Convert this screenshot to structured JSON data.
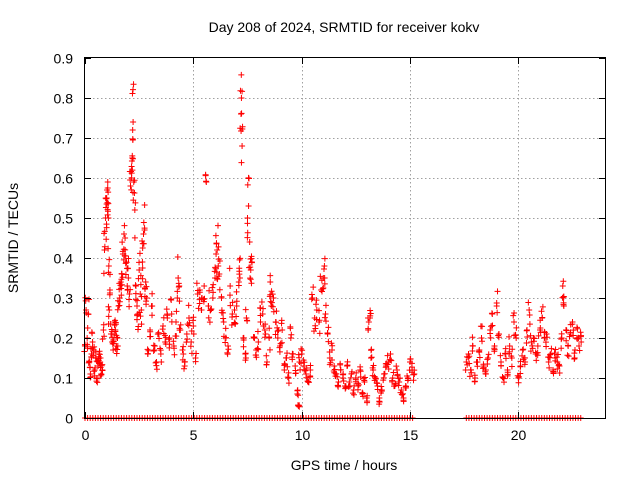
{
  "chart_data": {
    "type": "scatter",
    "title": "Day 208 of 2024, SRMTID for receiver kokv",
    "xlabel": "GPS time / hours",
    "ylabel": "SRMTID / TECUs",
    "xlim": [
      0,
      24
    ],
    "ylim": [
      0,
      0.9
    ],
    "xticks": [
      0,
      5,
      10,
      15,
      20
    ],
    "xtick_labels": [
      "0",
      "5",
      "10",
      "15",
      "20"
    ],
    "yticks": [
      0,
      0.1,
      0.2,
      0.3,
      0.4,
      0.5,
      0.6,
      0.7,
      0.8,
      0.9
    ],
    "ytick_labels": [
      "0",
      "0.1",
      "0.2",
      "0.3",
      "0.4",
      "0.5",
      "0.6",
      "0.7",
      "0.8",
      "0.9"
    ],
    "grid": true,
    "marker": "+",
    "color": "#ff0000",
    "series": [
      {
        "name": "SRMTID",
        "points": [
          [
            0.0,
            0.18
          ],
          [
            0.05,
            0.27
          ],
          [
            0.1,
            0.2
          ],
          [
            0.15,
            0.26
          ],
          [
            0.2,
            0.14
          ],
          [
            0.25,
            0.11
          ],
          [
            0.3,
            0.16
          ],
          [
            0.35,
            0.19
          ],
          [
            0.4,
            0.17
          ],
          [
            0.45,
            0.12
          ],
          [
            0.5,
            0.15
          ],
          [
            0.55,
            0.1
          ],
          [
            0.6,
            0.13
          ],
          [
            0.65,
            0.16
          ],
          [
            0.7,
            0.14
          ],
          [
            0.75,
            0.11
          ],
          [
            0.8,
            0.12
          ],
          [
            0.85,
            0.22
          ],
          [
            0.9,
            0.42
          ],
          [
            0.95,
            0.5
          ],
          [
            1.0,
            0.55
          ],
          [
            1.02,
            0.57
          ],
          [
            1.05,
            0.59
          ],
          [
            1.08,
            0.5
          ],
          [
            1.1,
            0.38
          ],
          [
            1.12,
            0.27
          ],
          [
            1.15,
            0.32
          ],
          [
            1.2,
            0.21
          ],
          [
            1.25,
            0.19
          ],
          [
            1.3,
            0.17
          ],
          [
            1.35,
            0.24
          ],
          [
            1.4,
            0.22
          ],
          [
            1.45,
            0.18
          ],
          [
            1.5,
            0.2
          ],
          [
            1.55,
            0.28
          ],
          [
            1.6,
            0.3
          ],
          [
            1.65,
            0.34
          ],
          [
            1.7,
            0.36
          ],
          [
            1.75,
            0.41
          ],
          [
            1.8,
            0.46
          ],
          [
            1.85,
            0.45
          ],
          [
            1.9,
            0.39
          ],
          [
            1.95,
            0.33
          ],
          [
            2.0,
            0.35
          ],
          [
            2.05,
            0.31
          ],
          [
            2.1,
            0.58
          ],
          [
            2.15,
            0.6
          ],
          [
            2.18,
            0.65
          ],
          [
            2.2,
            0.72
          ],
          [
            2.22,
            0.74
          ],
          [
            2.25,
            0.59
          ],
          [
            2.3,
            0.52
          ],
          [
            2.35,
            0.33
          ],
          [
            2.4,
            0.28
          ],
          [
            2.45,
            0.26
          ],
          [
            2.5,
            0.37
          ],
          [
            2.55,
            0.31
          ],
          [
            2.6,
            0.27
          ],
          [
            2.65,
            0.39
          ],
          [
            2.7,
            0.46
          ],
          [
            2.75,
            0.47
          ],
          [
            2.8,
            0.34
          ],
          [
            2.85,
            0.3
          ],
          [
            2.9,
            0.16
          ],
          [
            3.0,
            0.22
          ],
          [
            3.1,
            0.28
          ],
          [
            3.2,
            0.17
          ],
          [
            3.3,
            0.14
          ],
          [
            3.4,
            0.21
          ],
          [
            3.5,
            0.16
          ],
          [
            3.6,
            0.23
          ],
          [
            3.7,
            0.19
          ],
          [
            3.8,
            0.25
          ],
          [
            3.9,
            0.2
          ],
          [
            4.0,
            0.26
          ],
          [
            4.1,
            0.18
          ],
          [
            4.2,
            0.24
          ],
          [
            4.3,
            0.35
          ],
          [
            4.35,
            0.33
          ],
          [
            4.4,
            0.22
          ],
          [
            4.5,
            0.17
          ],
          [
            4.6,
            0.13
          ],
          [
            4.7,
            0.21
          ],
          [
            4.8,
            0.25
          ],
          [
            4.9,
            0.19
          ],
          [
            5.0,
            0.23
          ],
          [
            5.1,
            0.15
          ],
          [
            5.2,
            0.31
          ],
          [
            5.3,
            0.32
          ],
          [
            5.4,
            0.3
          ],
          [
            5.5,
            0.33
          ],
          [
            5.6,
            0.59
          ],
          [
            5.7,
            0.28
          ],
          [
            5.8,
            0.27
          ],
          [
            5.9,
            0.3
          ],
          [
            6.0,
            0.35
          ],
          [
            6.05,
            0.41
          ],
          [
            6.1,
            0.42
          ],
          [
            6.15,
            0.38
          ],
          [
            6.2,
            0.36
          ],
          [
            6.3,
            0.3
          ],
          [
            6.4,
            0.24
          ],
          [
            6.5,
            0.2
          ],
          [
            6.6,
            0.18
          ],
          [
            6.7,
            0.33
          ],
          [
            6.8,
            0.26
          ],
          [
            6.9,
            0.27
          ],
          [
            7.0,
            0.28
          ],
          [
            7.1,
            0.34
          ],
          [
            7.15,
            0.35
          ],
          [
            7.2,
            0.76
          ],
          [
            7.22,
            0.8
          ],
          [
            7.25,
            0.68
          ],
          [
            7.3,
            0.2
          ],
          [
            7.4,
            0.16
          ],
          [
            7.45,
            0.25
          ],
          [
            7.5,
            0.5
          ],
          [
            7.55,
            0.53
          ],
          [
            7.6,
            0.44
          ],
          [
            7.65,
            0.37
          ],
          [
            7.7,
            0.39
          ],
          [
            7.8,
            0.2
          ],
          [
            7.9,
            0.17
          ],
          [
            8.0,
            0.19
          ],
          [
            8.1,
            0.24
          ],
          [
            8.2,
            0.26
          ],
          [
            8.3,
            0.22
          ],
          [
            8.4,
            0.14
          ],
          [
            8.5,
            0.2
          ],
          [
            8.55,
            0.34
          ],
          [
            8.6,
            0.28
          ],
          [
            8.7,
            0.3
          ],
          [
            8.8,
            0.24
          ],
          [
            8.9,
            0.2
          ],
          [
            9.0,
            0.18
          ],
          [
            9.1,
            0.22
          ],
          [
            9.2,
            0.12
          ],
          [
            9.3,
            0.15
          ],
          [
            9.4,
            0.1
          ],
          [
            9.5,
            0.2
          ],
          [
            9.6,
            0.16
          ],
          [
            9.7,
            0.13
          ],
          [
            9.8,
            0.06
          ],
          [
            9.85,
            0.03
          ],
          [
            9.9,
            0.14
          ],
          [
            10.0,
            0.16
          ],
          [
            10.1,
            0.13
          ],
          [
            10.2,
            0.11
          ],
          [
            10.3,
            0.09
          ],
          [
            10.4,
            0.12
          ],
          [
            10.5,
            0.3
          ],
          [
            10.6,
            0.25
          ],
          [
            10.7,
            0.27
          ],
          [
            10.8,
            0.24
          ],
          [
            10.9,
            0.32
          ],
          [
            11.0,
            0.35
          ],
          [
            11.05,
            0.38
          ],
          [
            11.1,
            0.26
          ],
          [
            11.2,
            0.21
          ],
          [
            11.3,
            0.15
          ],
          [
            11.4,
            0.17
          ],
          [
            11.5,
            0.13
          ],
          [
            11.6,
            0.11
          ],
          [
            11.7,
            0.09
          ],
          [
            11.8,
            0.12
          ],
          [
            11.9,
            0.1
          ],
          [
            12.0,
            0.08
          ],
          [
            12.1,
            0.13
          ],
          [
            12.2,
            0.09
          ],
          [
            12.3,
            0.11
          ],
          [
            12.4,
            0.07
          ],
          [
            12.5,
            0.1
          ],
          [
            12.6,
            0.08
          ],
          [
            12.7,
            0.12
          ],
          [
            12.8,
            0.06
          ],
          [
            12.9,
            0.09
          ],
          [
            13.0,
            0.05
          ],
          [
            13.1,
            0.24
          ],
          [
            13.15,
            0.25
          ],
          [
            13.2,
            0.15
          ],
          [
            13.3,
            0.12
          ],
          [
            13.4,
            0.1
          ],
          [
            13.5,
            0.08
          ],
          [
            13.6,
            0.04
          ],
          [
            13.7,
            0.07
          ],
          [
            13.8,
            0.11
          ],
          [
            13.9,
            0.13
          ],
          [
            14.0,
            0.14
          ],
          [
            14.1,
            0.16
          ],
          [
            14.2,
            0.1
          ],
          [
            14.3,
            0.08
          ],
          [
            14.4,
            0.12
          ],
          [
            14.5,
            0.09
          ],
          [
            14.6,
            0.07
          ],
          [
            14.7,
            0.05
          ],
          [
            14.8,
            0.08
          ],
          [
            14.9,
            0.1
          ],
          [
            15.0,
            0.14
          ],
          [
            15.1,
            0.12
          ],
          [
            15.2,
            0.11
          ],
          [
            17.6,
            0.14
          ],
          [
            17.7,
            0.16
          ],
          [
            17.8,
            0.12
          ],
          [
            17.9,
            0.18
          ],
          [
            18.0,
            0.1
          ],
          [
            18.1,
            0.14
          ],
          [
            18.2,
            0.17
          ],
          [
            18.3,
            0.2
          ],
          [
            18.4,
            0.13
          ],
          [
            18.5,
            0.11
          ],
          [
            18.6,
            0.15
          ],
          [
            18.7,
            0.22
          ],
          [
            18.8,
            0.26
          ],
          [
            18.9,
            0.18
          ],
          [
            19.0,
            0.28
          ],
          [
            19.1,
            0.21
          ],
          [
            19.2,
            0.14
          ],
          [
            19.3,
            0.1
          ],
          [
            19.4,
            0.16
          ],
          [
            19.5,
            0.12
          ],
          [
            19.6,
            0.18
          ],
          [
            19.7,
            0.15
          ],
          [
            19.8,
            0.24
          ],
          [
            19.9,
            0.2
          ],
          [
            20.0,
            0.1
          ],
          [
            20.1,
            0.13
          ],
          [
            20.2,
            0.17
          ],
          [
            20.3,
            0.15
          ],
          [
            20.4,
            0.22
          ],
          [
            20.5,
            0.27
          ],
          [
            20.6,
            0.19
          ],
          [
            20.7,
            0.2
          ],
          [
            20.8,
            0.16
          ],
          [
            20.9,
            0.18
          ],
          [
            21.0,
            0.22
          ],
          [
            21.1,
            0.25
          ],
          [
            21.2,
            0.2
          ],
          [
            21.3,
            0.21
          ],
          [
            21.4,
            0.14
          ],
          [
            21.5,
            0.16
          ],
          [
            21.6,
            0.12
          ],
          [
            21.7,
            0.15
          ],
          [
            21.8,
            0.14
          ],
          [
            21.9,
            0.13
          ],
          [
            22.0,
            0.2
          ],
          [
            22.05,
            0.33
          ],
          [
            22.1,
            0.28
          ],
          [
            22.2,
            0.22
          ],
          [
            22.3,
            0.18
          ],
          [
            22.4,
            0.21
          ],
          [
            22.5,
            0.24
          ],
          [
            22.6,
            0.15
          ],
          [
            22.7,
            0.2
          ],
          [
            22.8,
            0.18
          ],
          [
            22.9,
            0.19
          ]
        ]
      }
    ],
    "zero_spans": [
      [
        0.0,
        15.2
      ],
      [
        17.6,
        22.9
      ]
    ]
  }
}
